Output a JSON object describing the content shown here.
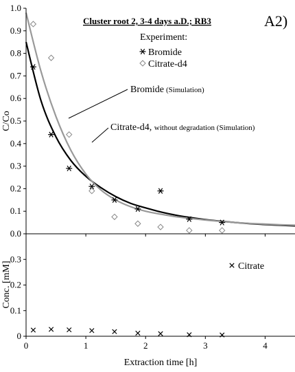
{
  "chart_data": [
    {
      "type": "scatter",
      "title": "Cluster root 2, 3-4 days a.D.; RB3",
      "panel_label": "A2)",
      "ylabel": "C/Co",
      "xlim": [
        0,
        4.5
      ],
      "ylim": [
        0,
        1.0
      ],
      "yticks": [
        "0.0",
        "0.1",
        "0.2",
        "0.3",
        "0.4",
        "0.5",
        "0.6",
        "0.7",
        "0.8",
        "0.9",
        "1.0"
      ],
      "grid": false,
      "legend_title": "Experiment:",
      "legend_position": "top-right",
      "series": [
        {
          "name": "Bromide",
          "marker": "asterisk",
          "color": "#000000",
          "x": [
            0.12,
            0.42,
            0.72,
            1.1,
            1.48,
            1.87,
            2.25,
            2.73,
            3.28
          ],
          "y": [
            0.74,
            0.44,
            0.29,
            0.21,
            0.15,
            0.11,
            0.19,
            0.065,
            0.05
          ]
        },
        {
          "name": "Citrate-d4",
          "marker": "diamond",
          "color": "#888888",
          "x": [
            0.12,
            0.42,
            0.72,
            1.1,
            1.48,
            1.87,
            2.25,
            2.73,
            3.28
          ],
          "y": [
            0.93,
            0.78,
            0.44,
            0.19,
            0.075,
            0.045,
            0.03,
            0.015,
            0.015
          ]
        }
      ],
      "curves": [
        {
          "name": "Bromide",
          "note": "(Simulation)",
          "color": "#000000",
          "x": [
            0,
            0.25,
            0.5,
            0.75,
            1.0,
            1.25,
            1.5,
            1.75,
            2.0,
            2.25,
            2.5,
            2.75,
            3.0,
            3.25,
            3.5,
            3.75,
            4.0,
            4.25,
            4.5
          ],
          "y": [
            0.85,
            0.59,
            0.43,
            0.325,
            0.255,
            0.205,
            0.165,
            0.135,
            0.115,
            0.097,
            0.083,
            0.072,
            0.063,
            0.056,
            0.05,
            0.045,
            0.041,
            0.038,
            0.035
          ]
        },
        {
          "name": "Citrate-d4, ",
          "note": "without degradation (Simulation)",
          "color": "#999999",
          "x": [
            0,
            0.25,
            0.5,
            0.75,
            1.0,
            1.25,
            1.5,
            1.75,
            2.0,
            2.25,
            2.5,
            2.75,
            3.0,
            3.25,
            3.5,
            3.75,
            4.0,
            4.25,
            4.5
          ],
          "y": [
            0.98,
            0.72,
            0.52,
            0.37,
            0.265,
            0.195,
            0.15,
            0.12,
            0.1,
            0.087,
            0.076,
            0.068,
            0.061,
            0.055,
            0.05,
            0.046,
            0.043,
            0.04,
            0.038
          ]
        }
      ]
    },
    {
      "type": "scatter",
      "ylabel": "Conc. [mM]",
      "xlabel": "Extraction time [h]",
      "xlim": [
        0,
        4.5
      ],
      "ylim": [
        0,
        0.4
      ],
      "xticks": [
        "0",
        "1",
        "2",
        "3",
        "4"
      ],
      "yticks": [
        "0",
        "0.1",
        "0.2",
        "0.3"
      ],
      "grid": false,
      "series": [
        {
          "name": "Citrate",
          "marker": "x",
          "color": "#000000",
          "x": [
            0.12,
            0.42,
            0.72,
            1.1,
            1.48,
            1.87,
            2.25,
            2.73,
            3.28
          ],
          "y": [
            0.024,
            0.027,
            0.025,
            0.022,
            0.018,
            0.012,
            0.01,
            0.006,
            0.005
          ]
        }
      ]
    }
  ]
}
